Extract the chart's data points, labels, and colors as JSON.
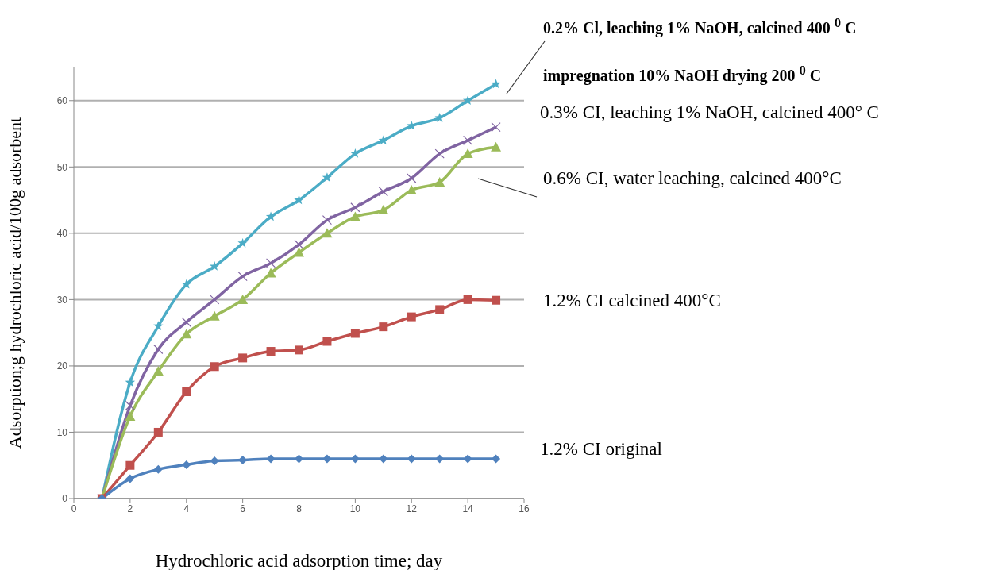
{
  "chart_data": {
    "type": "line",
    "xlabel": "Hydrochloric acid adsorption time; day",
    "ylabel": "Adsorption;g hydrochloric acid/100g adsorbent",
    "x": [
      1,
      2,
      3,
      4,
      5,
      6,
      7,
      8,
      9,
      10,
      11,
      12,
      13,
      14,
      15
    ],
    "xlim": [
      0,
      16
    ],
    "xticks": [
      0,
      2,
      4,
      6,
      8,
      10,
      12,
      14,
      16
    ],
    "ylim": [
      0,
      65
    ],
    "yticks": [
      0,
      10,
      20,
      30,
      40,
      50,
      60
    ],
    "grid": "y",
    "series": [
      {
        "name": "0.2% Cl, leaching 1% NaOH, calcined 400 $^{0}$ C impregnation 10% NaOH drying 200 $^{0}$ C",
        "color": "#4bacc6",
        "marker": "star",
        "values": [
          0,
          17.5,
          26,
          32.3,
          35,
          38.5,
          42.5,
          45,
          48.4,
          52,
          54,
          56.2,
          57.4,
          60,
          62.5
        ]
      },
      {
        "name": "0.3% CI, leaching 1% NaOH, calcined 400° C",
        "color": "#8064a2",
        "marker": "cross",
        "values": [
          0,
          14,
          22.5,
          26.6,
          30,
          33.5,
          35.5,
          38.3,
          42,
          43.9,
          46.3,
          48.3,
          52,
          54,
          56
        ]
      },
      {
        "name": "0.6% CI, water leaching, calcined 400°C",
        "color": "#9bbb59",
        "marker": "triangle",
        "values": [
          0,
          12.4,
          19.2,
          24.8,
          27.5,
          30,
          34,
          37.1,
          40,
          42.5,
          43.5,
          46.5,
          47.7,
          52,
          53
        ]
      },
      {
        "name": "1.2% CI calcined 400°C",
        "color": "#c0504d",
        "marker": "square",
        "values": [
          0,
          5,
          10,
          16.1,
          19.9,
          21.2,
          22.2,
          22.4,
          23.7,
          24.9,
          25.9,
          27.4,
          28.5,
          30,
          29.9
        ]
      },
      {
        "name": "1.2% CI original",
        "color": "#4f81bd",
        "marker": "diamond",
        "values": [
          0,
          3,
          4.4,
          5.1,
          5.7,
          5.8,
          6,
          6,
          6,
          6,
          6,
          6,
          6,
          6,
          6
        ]
      }
    ]
  }
}
